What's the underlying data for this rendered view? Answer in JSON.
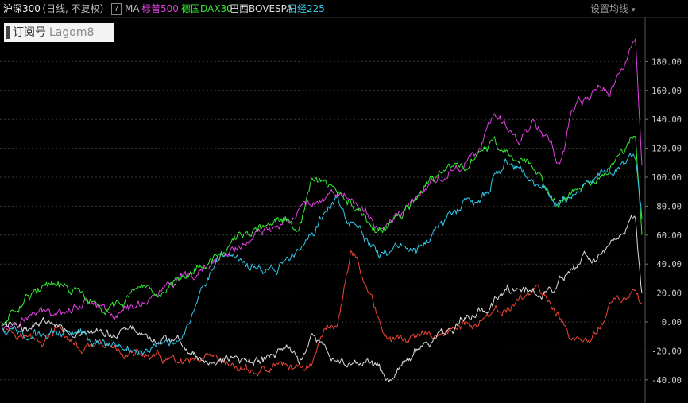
{
  "header": {
    "primary_index": "沪深300",
    "mode": "（日线, 不复权）",
    "help_label": "?",
    "ma_label": "MA",
    "compare_items": [
      {
        "label": "标普500",
        "color": "#e040e0"
      },
      {
        "label": "德国DAX30",
        "color": "#33ee33"
      },
      {
        "label": "巴西BOVESPA",
        "color": "#dddddd"
      },
      {
        "label": "日经225",
        "color": "#33c8e8"
      }
    ],
    "settings_label": "设置均线",
    "settings_icon": "caret-down-icon"
  },
  "watermark": {
    "text_cn": "订阅号",
    "text_en": "Lagom8"
  },
  "chart_data": {
    "type": "line",
    "y_unit": "%",
    "ylim": [
      -43,
      200
    ],
    "y_ticks": [
      -40,
      -20,
      0,
      20,
      40,
      60,
      80,
      100,
      120,
      140,
      160,
      180
    ],
    "y_tick_labels": [
      "-40.00",
      "-20.00",
      "0.00",
      "20.00",
      "40.00",
      "60.00",
      "80.00",
      "100.00",
      "120.00",
      "140.00",
      "160.00",
      "180.00"
    ],
    "grid": true,
    "x_count": 100,
    "series": [
      {
        "name": "沪深300",
        "color": "#ee4433",
        "keyframes": [
          [
            0,
            -2
          ],
          [
            3,
            -8
          ],
          [
            6,
            -15
          ],
          [
            9,
            -5
          ],
          [
            12,
            -20
          ],
          [
            16,
            -18
          ],
          [
            20,
            -22
          ],
          [
            24,
            -25
          ],
          [
            28,
            -30
          ],
          [
            32,
            -28
          ],
          [
            36,
            -32
          ],
          [
            40,
            -35
          ],
          [
            43,
            -30
          ],
          [
            46,
            -32
          ],
          [
            48,
            -28
          ],
          [
            50,
            -5
          ],
          [
            52,
            0
          ],
          [
            54,
            50
          ],
          [
            55,
            45
          ],
          [
            56,
            25
          ],
          [
            57,
            20
          ],
          [
            58,
            5
          ],
          [
            60,
            -15
          ],
          [
            63,
            -12
          ],
          [
            66,
            -10
          ],
          [
            70,
            -5
          ],
          [
            74,
            0
          ],
          [
            77,
            5
          ],
          [
            80,
            15
          ],
          [
            82,
            22
          ],
          [
            84,
            20
          ],
          [
            86,
            5
          ],
          [
            88,
            -10
          ],
          [
            90,
            -15
          ],
          [
            92,
            -8
          ],
          [
            94,
            12
          ],
          [
            96,
            15
          ],
          [
            98,
            20
          ],
          [
            99,
            8
          ]
        ]
      },
      {
        "name": "标普500",
        "color": "#e040e0",
        "keyframes": [
          [
            0,
            -5
          ],
          [
            5,
            5
          ],
          [
            10,
            10
          ],
          [
            14,
            15
          ],
          [
            18,
            5
          ],
          [
            22,
            15
          ],
          [
            26,
            25
          ],
          [
            30,
            30
          ],
          [
            34,
            45
          ],
          [
            38,
            55
          ],
          [
            42,
            65
          ],
          [
            46,
            78
          ],
          [
            50,
            88
          ],
          [
            52,
            90
          ],
          [
            54,
            85
          ],
          [
            56,
            75
          ],
          [
            58,
            65
          ],
          [
            60,
            70
          ],
          [
            62,
            75
          ],
          [
            64,
            85
          ],
          [
            66,
            95
          ],
          [
            70,
            105
          ],
          [
            74,
            120
          ],
          [
            76,
            140
          ],
          [
            78,
            135
          ],
          [
            80,
            125
          ],
          [
            82,
            140
          ],
          [
            84,
            130
          ],
          [
            85,
            125
          ],
          [
            86,
            110
          ],
          [
            87,
            120
          ],
          [
            88,
            145
          ],
          [
            90,
            150
          ],
          [
            92,
            160
          ],
          [
            94,
            160
          ],
          [
            96,
            175
          ],
          [
            98,
            195
          ],
          [
            99,
            110
          ]
        ]
      },
      {
        "name": "德国DAX30",
        "color": "#33ee33",
        "keyframes": [
          [
            0,
            -3
          ],
          [
            4,
            20
          ],
          [
            8,
            25
          ],
          [
            12,
            20
          ],
          [
            16,
            5
          ],
          [
            20,
            20
          ],
          [
            24,
            15
          ],
          [
            28,
            35
          ],
          [
            32,
            40
          ],
          [
            36,
            55
          ],
          [
            40,
            65
          ],
          [
            44,
            70
          ],
          [
            46,
            60
          ],
          [
            48,
            100
          ],
          [
            50,
            95
          ],
          [
            52,
            88
          ],
          [
            54,
            82
          ],
          [
            56,
            70
          ],
          [
            58,
            62
          ],
          [
            60,
            65
          ],
          [
            62,
            75
          ],
          [
            64,
            85
          ],
          [
            66,
            95
          ],
          [
            68,
            102
          ],
          [
            70,
            110
          ],
          [
            72,
            105
          ],
          [
            74,
            118
          ],
          [
            76,
            125
          ],
          [
            78,
            115
          ],
          [
            80,
            108
          ],
          [
            82,
            110
          ],
          [
            84,
            95
          ],
          [
            86,
            80
          ],
          [
            88,
            90
          ],
          [
            90,
            100
          ],
          [
            92,
            95
          ],
          [
            94,
            105
          ],
          [
            96,
            115
          ],
          [
            98,
            130
          ],
          [
            99,
            58
          ]
        ]
      },
      {
        "name": "巴西BOVESPA",
        "color": "#dddddd",
        "keyframes": [
          [
            0,
            -2
          ],
          [
            4,
            -3
          ],
          [
            8,
            2
          ],
          [
            12,
            -8
          ],
          [
            16,
            -10
          ],
          [
            20,
            -5
          ],
          [
            24,
            -12
          ],
          [
            28,
            -15
          ],
          [
            32,
            -30
          ],
          [
            36,
            -25
          ],
          [
            40,
            -28
          ],
          [
            44,
            -18
          ],
          [
            46,
            -25
          ],
          [
            48,
            -10
          ],
          [
            50,
            -20
          ],
          [
            52,
            -28
          ],
          [
            54,
            -30
          ],
          [
            56,
            -25
          ],
          [
            58,
            -30
          ],
          [
            60,
            -42
          ],
          [
            62,
            -30
          ],
          [
            64,
            -20
          ],
          [
            66,
            -15
          ],
          [
            70,
            -5
          ],
          [
            74,
            10
          ],
          [
            78,
            20
          ],
          [
            80,
            25
          ],
          [
            82,
            22
          ],
          [
            84,
            15
          ],
          [
            86,
            25
          ],
          [
            88,
            35
          ],
          [
            90,
            45
          ],
          [
            92,
            40
          ],
          [
            94,
            50
          ],
          [
            96,
            60
          ],
          [
            98,
            72
          ],
          [
            99,
            20
          ]
        ]
      },
      {
        "name": "日经225",
        "color": "#33c8e8",
        "keyframes": [
          [
            0,
            -3
          ],
          [
            4,
            -10
          ],
          [
            8,
            -8
          ],
          [
            12,
            -5
          ],
          [
            16,
            -15
          ],
          [
            20,
            -20
          ],
          [
            24,
            -15
          ],
          [
            28,
            -10
          ],
          [
            30,
            15
          ],
          [
            32,
            35
          ],
          [
            34,
            45
          ],
          [
            36,
            40
          ],
          [
            40,
            35
          ],
          [
            44,
            40
          ],
          [
            46,
            50
          ],
          [
            50,
            75
          ],
          [
            52,
            85
          ],
          [
            54,
            70
          ],
          [
            56,
            60
          ],
          [
            58,
            50
          ],
          [
            60,
            45
          ],
          [
            62,
            55
          ],
          [
            64,
            48
          ],
          [
            66,
            55
          ],
          [
            68,
            70
          ],
          [
            70,
            75
          ],
          [
            72,
            85
          ],
          [
            74,
            80
          ],
          [
            76,
            100
          ],
          [
            78,
            110
          ],
          [
            80,
            105
          ],
          [
            82,
            95
          ],
          [
            84,
            90
          ],
          [
            86,
            80
          ],
          [
            88,
            85
          ],
          [
            90,
            95
          ],
          [
            92,
            100
          ],
          [
            94,
            105
          ],
          [
            96,
            110
          ],
          [
            98,
            115
          ],
          [
            99,
            72
          ]
        ]
      }
    ]
  }
}
